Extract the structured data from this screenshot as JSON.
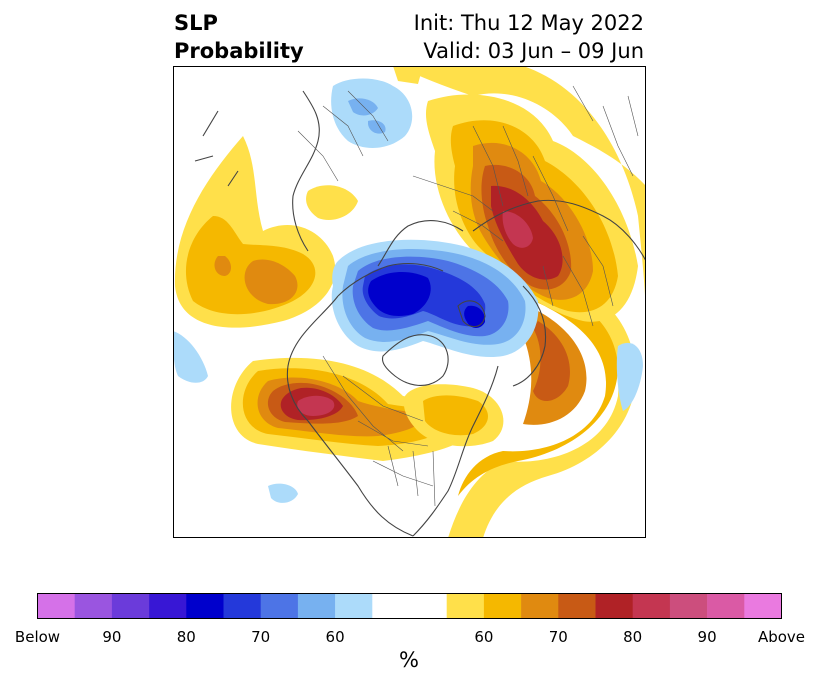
{
  "title": {
    "left_line1": "SLP",
    "left_line2": "Probability",
    "right_line1": "Init: Thu 12 May 2022",
    "right_line2": "Valid: 03 Jun – 09 Jun"
  },
  "map": {
    "projection": "north polar stereographic",
    "region": "Northern Hemisphere",
    "regions": [
      {
        "name": "alaska-aleutian-below",
        "category": "below",
        "level": "70"
      },
      {
        "name": "arctic-ocean-below",
        "category": "below",
        "level": "80+"
      },
      {
        "name": "west-europe-below",
        "category": "below",
        "level": "60"
      },
      {
        "name": "north-pacific-above",
        "category": "above",
        "level": "70"
      },
      {
        "name": "western-north-america-above",
        "category": "above",
        "level": "85"
      },
      {
        "name": "north-atlantic-above",
        "category": "above",
        "level": "75"
      },
      {
        "name": "eastern-siberia-above",
        "category": "above",
        "level": "85"
      }
    ]
  },
  "colorbar": {
    "unit": "%",
    "colors": [
      "#d571e8",
      "#9a55e0",
      "#6b3bda",
      "#3817d5",
      "#0000cc",
      "#2439da",
      "#4d74e6",
      "#77b1f0",
      "#acdbfa",
      "#ffffff",
      "#ffe04a",
      "#f5b800",
      "#e08a10",
      "#c85a15",
      "#b02226",
      "#c43651",
      "#cc4e7d",
      "#da5aa5",
      "#ea7ae0"
    ],
    "tick_labels": [
      "Below",
      "90",
      "80",
      "70",
      "60",
      "60",
      "70",
      "80",
      "90",
      "Above"
    ]
  }
}
